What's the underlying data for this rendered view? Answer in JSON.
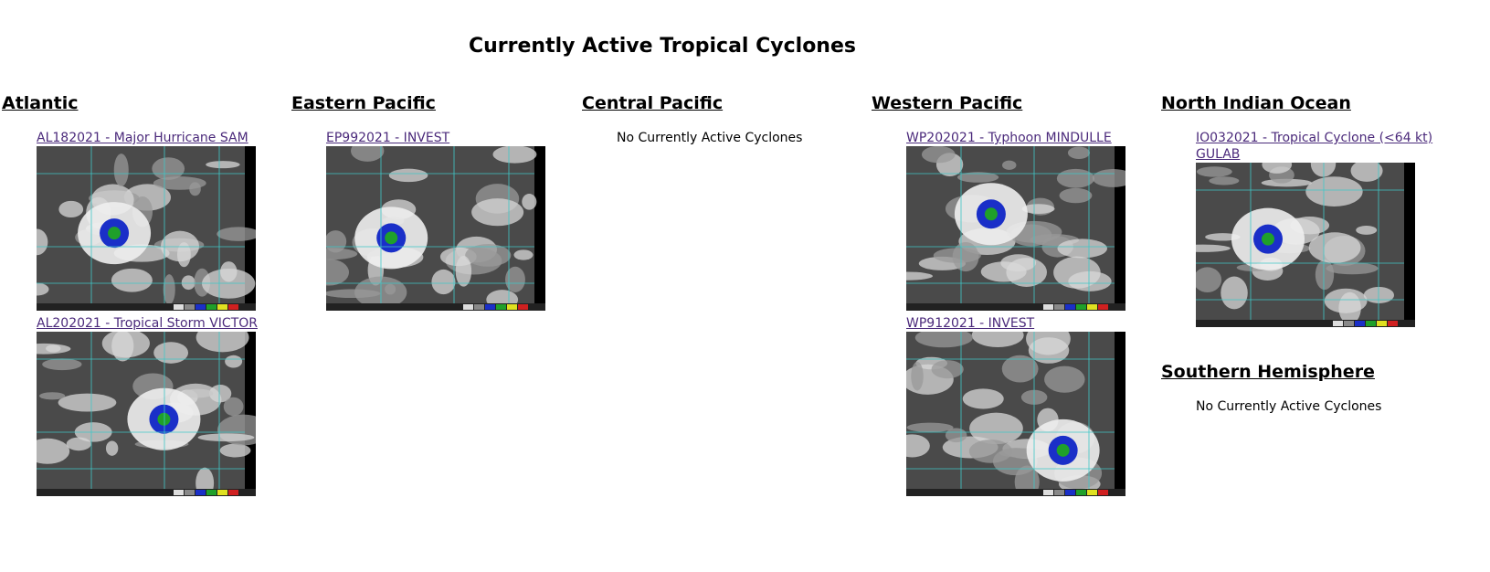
{
  "title": "Currently Active Tropical Cyclones",
  "columns": [
    {
      "basins": [
        {
          "name": "Atlantic",
          "storms": [
            {
              "link": "AL182021 - Major Hurricane SAM"
            },
            {
              "link": "AL202021 - Tropical Storm VICTOR"
            }
          ]
        }
      ]
    },
    {
      "basins": [
        {
          "name": "Eastern Pacific",
          "storms": [
            {
              "link": "EP992021 - INVEST"
            }
          ]
        }
      ]
    },
    {
      "basins": [
        {
          "name": "Central Pacific",
          "message": "No Currently Active Cyclones"
        }
      ]
    },
    {
      "basins": [
        {
          "name": "Western Pacific",
          "storms": [
            {
              "link": "WP202021 - Typhoon MINDULLE"
            },
            {
              "link": "WP912021 - INVEST"
            }
          ]
        }
      ]
    },
    {
      "basins": [
        {
          "name": "North Indian Ocean",
          "storms": [
            {
              "link": "IO032021 - Tropical Cyclone (<64 kt) GULAB"
            }
          ]
        },
        {
          "name": "Southern Hemisphere",
          "message": "No Currently Active Cyclones"
        }
      ]
    }
  ]
}
